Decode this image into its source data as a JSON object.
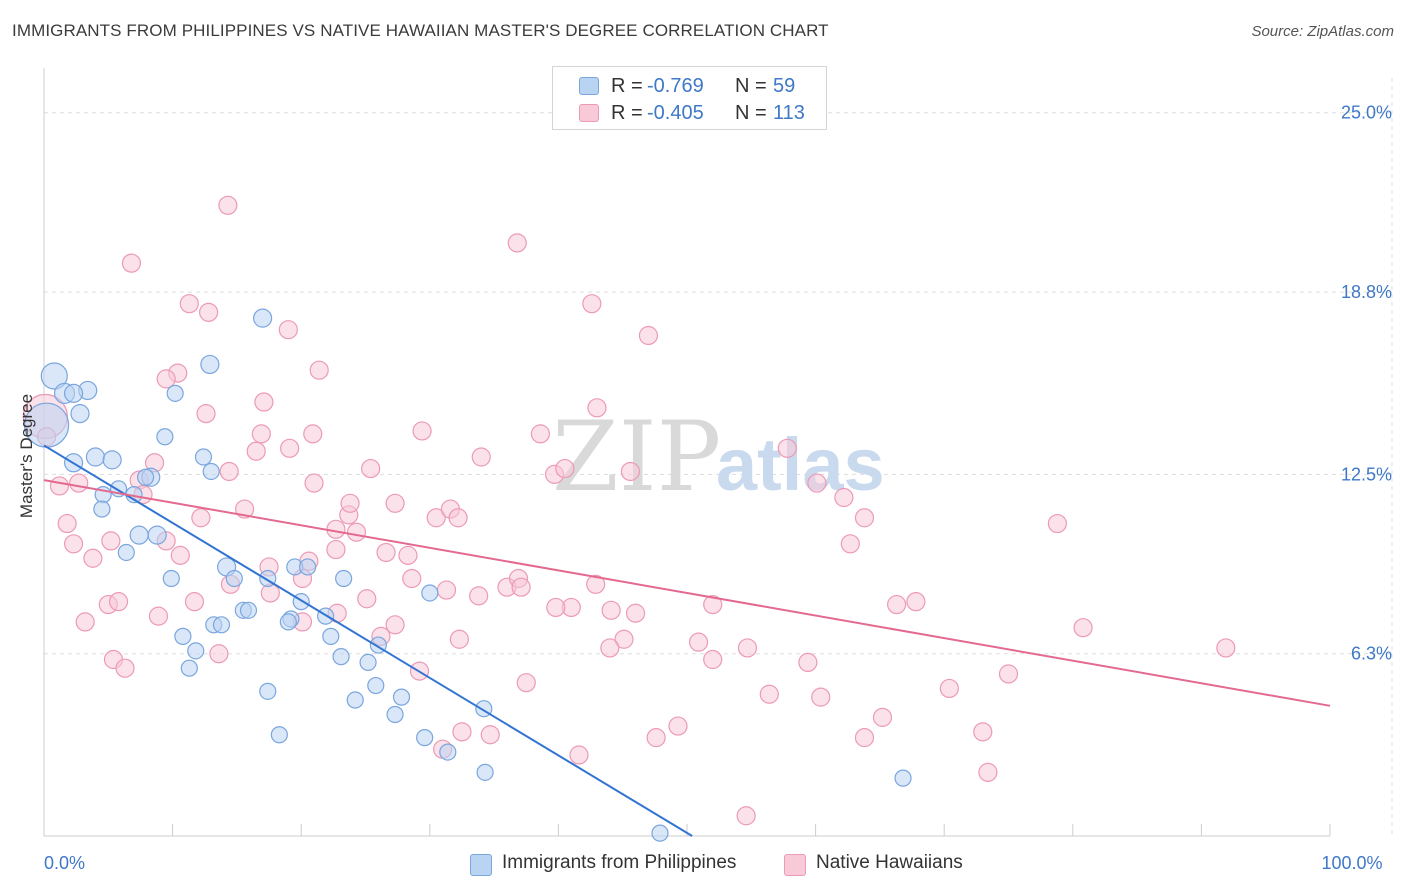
{
  "title": "IMMIGRANTS FROM PHILIPPINES VS NATIVE HAWAIIAN MASTER'S DEGREE CORRELATION CHART",
  "source": "Source: ZipAtlas.com",
  "watermark": {
    "zip": "ZIP",
    "atlas": "atlas"
  },
  "colors": {
    "blue_fill": "#b9d3f3",
    "blue_stroke": "#7aa6de",
    "blue_line": "#3274d2",
    "pink_fill": "#f8c9d7",
    "pink_stroke": "#ec9ab6",
    "pink_line": "#e4698f",
    "tick_text": "#3f78c8",
    "grid": "#dddddd"
  },
  "legend_top": {
    "rows": [
      {
        "series": "blue",
        "r_label": "R =",
        "r_value": "-0.769",
        "n_label": "N =",
        "n_value": "59"
      },
      {
        "series": "pink",
        "r_label": "R =",
        "r_value": "-0.405",
        "n_label": "N =",
        "n_value": "113"
      }
    ]
  },
  "legend_bottom": [
    {
      "series": "blue",
      "label": "Immigrants from Philippines"
    },
    {
      "series": "pink",
      "label": "Native Hawaiians"
    }
  ],
  "chart_data": {
    "type": "scatter",
    "title": "IMMIGRANTS FROM PHILIPPINES VS NATIVE HAWAIIAN MASTER'S DEGREE CORRELATION CHART",
    "xlabel": "",
    "ylabel": "Master's Degree",
    "xlim": [
      0,
      100
    ],
    "ylim": [
      0,
      26.2
    ],
    "x_tick_labels": [
      {
        "value": 0,
        "label": "0.0%"
      },
      {
        "value": 100,
        "label": "100.0%"
      }
    ],
    "y_tick_labels": [
      {
        "value": 6.3,
        "label": "6.3%"
      },
      {
        "value": 12.5,
        "label": "12.5%"
      },
      {
        "value": 18.8,
        "label": "18.8%"
      },
      {
        "value": 25.0,
        "label": "25.0%"
      }
    ],
    "grid": true,
    "legend_position": "top-center",
    "series": [
      {
        "name": "Immigrants from Philippines",
        "color": "blue",
        "R": -0.769,
        "N": 59,
        "trend": {
          "x": [
            0,
            50.4
          ],
          "y": [
            13.5,
            0
          ]
        },
        "points": [
          [
            0.2,
            14.2,
            22
          ],
          [
            0.8,
            15.9,
            13
          ],
          [
            1.6,
            15.3,
            10
          ],
          [
            3.4,
            15.4,
            9
          ],
          [
            2.3,
            15.3,
            9
          ],
          [
            2.8,
            14.6,
            9
          ],
          [
            4.0,
            13.1,
            9
          ],
          [
            5.3,
            13.0,
            9
          ],
          [
            2.3,
            12.9,
            9
          ],
          [
            8.3,
            12.4,
            9
          ],
          [
            7.9,
            12.4,
            8
          ],
          [
            5.8,
            12.0,
            8
          ],
          [
            4.6,
            11.8,
            8
          ],
          [
            7.0,
            11.8,
            8
          ],
          [
            4.5,
            11.3,
            8
          ],
          [
            8.8,
            10.4,
            9
          ],
          [
            7.4,
            10.4,
            9
          ],
          [
            6.4,
            9.8,
            8
          ],
          [
            9.4,
            13.8,
            8
          ],
          [
            12.4,
            13.1,
            8
          ],
          [
            13.0,
            12.6,
            8
          ],
          [
            10.2,
            15.3,
            8
          ],
          [
            12.9,
            16.3,
            9
          ],
          [
            17.0,
            17.9,
            9
          ],
          [
            9.9,
            8.9,
            8
          ],
          [
            14.2,
            9.3,
            9
          ],
          [
            14.8,
            8.9,
            8
          ],
          [
            17.4,
            8.9,
            8
          ],
          [
            19.5,
            9.3,
            8
          ],
          [
            20.5,
            9.3,
            8
          ],
          [
            23.3,
            8.9,
            8
          ],
          [
            15.5,
            7.8,
            8
          ],
          [
            15.9,
            7.8,
            8
          ],
          [
            20.0,
            8.1,
            8
          ],
          [
            19.2,
            7.5,
            8
          ],
          [
            19.0,
            7.4,
            8
          ],
          [
            21.9,
            7.6,
            8
          ],
          [
            13.2,
            7.3,
            8
          ],
          [
            13.8,
            7.3,
            8
          ],
          [
            10.8,
            6.9,
            8
          ],
          [
            11.8,
            6.4,
            8
          ],
          [
            11.3,
            5.8,
            8
          ],
          [
            22.3,
            6.9,
            8
          ],
          [
            23.1,
            6.2,
            8
          ],
          [
            25.2,
            6.0,
            8
          ],
          [
            26.0,
            6.6,
            8
          ],
          [
            30.0,
            8.4,
            8
          ],
          [
            17.4,
            5.0,
            8
          ],
          [
            24.2,
            4.7,
            8
          ],
          [
            25.8,
            5.2,
            8
          ],
          [
            27.3,
            4.2,
            8
          ],
          [
            27.8,
            4.8,
            8
          ],
          [
            18.3,
            3.5,
            8
          ],
          [
            29.6,
            3.4,
            8
          ],
          [
            31.4,
            2.9,
            8
          ],
          [
            34.2,
            4.4,
            8
          ],
          [
            34.3,
            2.2,
            8
          ],
          [
            66.8,
            2.0,
            8
          ],
          [
            47.9,
            0.1,
            8
          ]
        ]
      },
      {
        "name": "Native Hawaiians",
        "color": "pink",
        "R": -0.405,
        "N": 113,
        "trend": {
          "x": [
            0,
            100
          ],
          "y": [
            12.3,
            4.5
          ]
        },
        "points": [
          [
            0.1,
            14.5,
            22
          ],
          [
            14.3,
            21.8,
            9
          ],
          [
            36.8,
            20.5,
            9
          ],
          [
            6.8,
            19.8,
            9
          ],
          [
            11.3,
            18.4,
            9
          ],
          [
            12.8,
            18.1,
            9
          ],
          [
            42.6,
            18.4,
            9
          ],
          [
            19.0,
            17.5,
            9
          ],
          [
            47.0,
            17.3,
            9
          ],
          [
            10.4,
            16.0,
            9
          ],
          [
            21.4,
            16.1,
            9
          ],
          [
            9.5,
            15.8,
            9
          ],
          [
            12.6,
            14.6,
            9
          ],
          [
            17.1,
            15.0,
            9
          ],
          [
            43.0,
            14.8,
            9
          ],
          [
            16.9,
            13.9,
            9
          ],
          [
            20.9,
            13.9,
            9
          ],
          [
            29.4,
            14.0,
            9
          ],
          [
            38.6,
            13.9,
            9
          ],
          [
            0.2,
            13.8,
            9
          ],
          [
            16.5,
            13.3,
            9
          ],
          [
            19.1,
            13.4,
            9
          ],
          [
            34.0,
            13.1,
            9
          ],
          [
            8.6,
            12.9,
            9
          ],
          [
            14.4,
            12.6,
            9
          ],
          [
            25.4,
            12.7,
            9
          ],
          [
            39.7,
            12.5,
            9
          ],
          [
            40.5,
            12.7,
            9
          ],
          [
            45.6,
            12.6,
            9
          ],
          [
            57.8,
            13.4,
            9
          ],
          [
            60.1,
            12.2,
            9
          ],
          [
            2.7,
            12.2,
            9
          ],
          [
            1.2,
            12.1,
            9
          ],
          [
            7.4,
            12.3,
            9
          ],
          [
            21.0,
            12.2,
            9
          ],
          [
            62.2,
            11.7,
            9
          ],
          [
            63.8,
            11.0,
            9
          ],
          [
            7.7,
            11.8,
            9
          ],
          [
            15.6,
            11.3,
            9
          ],
          [
            23.7,
            11.1,
            9
          ],
          [
            23.8,
            11.5,
            9
          ],
          [
            27.3,
            11.5,
            9
          ],
          [
            30.5,
            11.0,
            9
          ],
          [
            31.6,
            11.3,
            9
          ],
          [
            32.2,
            11.0,
            9
          ],
          [
            78.8,
            10.8,
            9
          ],
          [
            1.8,
            10.8,
            9
          ],
          [
            9.5,
            10.2,
            9
          ],
          [
            12.2,
            11.0,
            9
          ],
          [
            24.3,
            10.5,
            9
          ],
          [
            22.7,
            10.6,
            9
          ],
          [
            62.7,
            10.1,
            9
          ],
          [
            2.3,
            10.1,
            9
          ],
          [
            3.8,
            9.6,
            9
          ],
          [
            5.2,
            10.2,
            9
          ],
          [
            10.6,
            9.7,
            9
          ],
          [
            22.7,
            9.9,
            9
          ],
          [
            26.6,
            9.8,
            9
          ],
          [
            28.3,
            9.7,
            9
          ],
          [
            20.6,
            9.5,
            9
          ],
          [
            17.5,
            9.3,
            9
          ],
          [
            28.6,
            8.9,
            9
          ],
          [
            36.0,
            8.6,
            9
          ],
          [
            36.9,
            8.9,
            9
          ],
          [
            37.1,
            8.6,
            9
          ],
          [
            42.9,
            8.7,
            9
          ],
          [
            14.5,
            8.7,
            9
          ],
          [
            17.6,
            8.4,
            9
          ],
          [
            20.1,
            8.9,
            9
          ],
          [
            25.1,
            8.2,
            9
          ],
          [
            31.3,
            8.5,
            9
          ],
          [
            33.8,
            8.3,
            9
          ],
          [
            41.0,
            7.9,
            9
          ],
          [
            52.0,
            8.0,
            9
          ],
          [
            5.0,
            8.0,
            9
          ],
          [
            5.8,
            8.1,
            9
          ],
          [
            11.7,
            8.1,
            9
          ],
          [
            22.8,
            7.7,
            9
          ],
          [
            39.8,
            7.9,
            9
          ],
          [
            44.1,
            7.8,
            9
          ],
          [
            46.0,
            7.7,
            9
          ],
          [
            66.3,
            8.0,
            9
          ],
          [
            67.8,
            8.1,
            9
          ],
          [
            3.2,
            7.4,
            9
          ],
          [
            8.9,
            7.6,
            9
          ],
          [
            20.1,
            7.4,
            9
          ],
          [
            27.3,
            7.3,
            9
          ],
          [
            26.2,
            6.9,
            9
          ],
          [
            45.1,
            6.8,
            9
          ],
          [
            50.9,
            6.7,
            9
          ],
          [
            54.7,
            6.5,
            9
          ],
          [
            80.8,
            7.2,
            9
          ],
          [
            32.3,
            6.8,
            9
          ],
          [
            44.0,
            6.5,
            9
          ],
          [
            13.6,
            6.3,
            9
          ],
          [
            5.4,
            6.1,
            9
          ],
          [
            6.3,
            5.8,
            9
          ],
          [
            29.2,
            5.7,
            9
          ],
          [
            52.0,
            6.1,
            9
          ],
          [
            59.4,
            6.0,
            9
          ],
          [
            91.9,
            6.5,
            9
          ],
          [
            75.0,
            5.6,
            9
          ],
          [
            37.5,
            5.3,
            9
          ],
          [
            56.4,
            4.9,
            9
          ],
          [
            60.4,
            4.8,
            9
          ],
          [
            70.4,
            5.1,
            9
          ],
          [
            65.2,
            4.1,
            9
          ],
          [
            49.3,
            3.8,
            9
          ],
          [
            47.6,
            3.4,
            9
          ],
          [
            63.8,
            3.4,
            9
          ],
          [
            73.0,
            3.6,
            9
          ],
          [
            32.5,
            3.6,
            9
          ],
          [
            34.7,
            3.5,
            9
          ],
          [
            31.0,
            3.0,
            9
          ],
          [
            41.6,
            2.8,
            9
          ],
          [
            73.4,
            2.2,
            9
          ],
          [
            54.6,
            0.7,
            9
          ],
          [
            43.2,
            0.0,
            0
          ]
        ]
      }
    ]
  }
}
